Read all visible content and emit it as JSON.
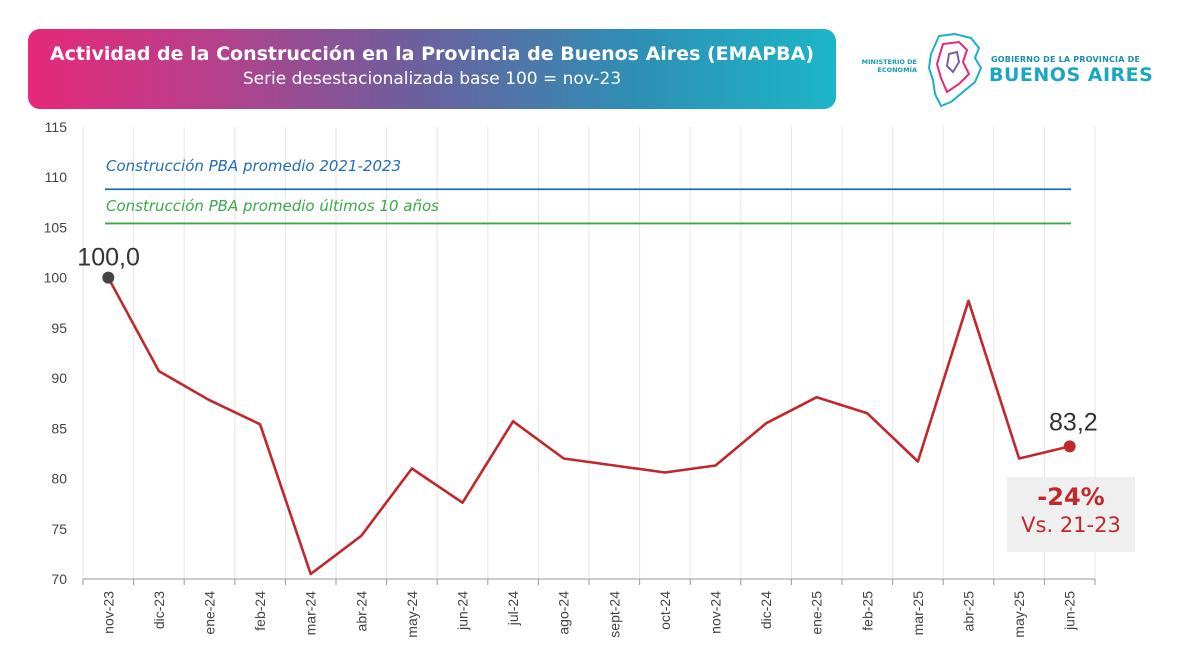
{
  "header": {
    "title": "Actividad de la Construcción en la Provincia de Buenos Aires (EMAPBA)",
    "subtitle": "Serie desestacionalizada base 100 = nov-23"
  },
  "logo": {
    "ministerio_line1": "MINISTERIO DE",
    "ministerio_line2": "ECONOMÍA",
    "gobierno_line": "GOBIERNO DE LA PROVINCIA DE",
    "provincia_name": "BUENOS AIRES"
  },
  "chart_data": {
    "type": "line",
    "title": "Actividad de la Construcción en la Provincia de Buenos Aires (EMAPBA)",
    "subtitle": "Serie desestacionalizada base 100 = nov-23",
    "categories": [
      "nov-23",
      "dic-23",
      "ene-24",
      "feb-24",
      "mar-24",
      "abr-24",
      "may-24",
      "jun-24",
      "jul-24",
      "ago-24",
      "sept-24",
      "oct-24",
      "nov-24",
      "dic-24",
      "ene-25",
      "feb-25",
      "mar-25",
      "abr-25",
      "may-25",
      "jun-25"
    ],
    "series": [
      {
        "name": "EMAPBA",
        "color": "#c0282d",
        "values": [
          100.0,
          90.7,
          87.8,
          85.4,
          70.5,
          74.3,
          81.0,
          77.6,
          85.7,
          82.0,
          81.3,
          80.6,
          81.3,
          85.5,
          88.1,
          86.5,
          81.7,
          97.7,
          82.0,
          83.2
        ]
      }
    ],
    "reference_lines": [
      {
        "label": "Construcción PBA promedio 2021-2023",
        "value": 108.8,
        "color": "#1f6fb5"
      },
      {
        "label": "Construcción PBA promedio últimos 10 años",
        "value": 105.4,
        "color": "#3aaa47"
      }
    ],
    "ylim": [
      70,
      115
    ],
    "yticks": [
      70,
      75,
      80,
      85,
      90,
      95,
      100,
      105,
      110,
      115
    ],
    "grid": true,
    "start_label": "100,0",
    "end_label": "83,2",
    "start_marker_color": "#444444",
    "end_marker_color": "#c0282d",
    "xlabel": "",
    "ylabel": ""
  },
  "annotation": {
    "delta_pct": "-24%",
    "delta_text": "Vs. 21-23"
  }
}
